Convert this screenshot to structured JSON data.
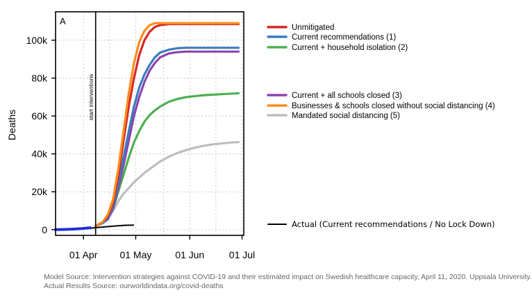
{
  "chart_data": {
    "type": "line",
    "panel_label": "A",
    "ylabel": "Deaths",
    "xlabel": "",
    "ylim": [
      -3000,
      115000
    ],
    "xlim_days_from_mar1": [
      15,
      123
    ],
    "x_ticks": [
      {
        "label": "01 Apr",
        "day": 31
      },
      {
        "label": "01 May",
        "day": 61
      },
      {
        "label": "01 Jun",
        "day": 92
      },
      {
        "label": "01 Jul",
        "day": 122
      }
    ],
    "y_ticks": [
      {
        "label": "0",
        "value": 0
      },
      {
        "label": "20k",
        "value": 20000
      },
      {
        "label": "40k",
        "value": 40000
      },
      {
        "label": "60k",
        "value": 60000
      },
      {
        "label": "80k",
        "value": 80000
      },
      {
        "label": "100k",
        "value": 100000
      }
    ],
    "grid": "dotted",
    "intervention": {
      "day": 38,
      "label": "start interventions"
    },
    "series": [
      {
        "name": "Unmitigated",
        "color": "#d62728",
        "x": [
          38,
          42,
          45,
          48,
          51,
          54,
          57,
          60,
          63,
          66,
          69,
          72,
          75,
          80,
          90,
          100,
          110,
          120
        ],
        "y": [
          2000,
          4000,
          7000,
          14000,
          28000,
          47000,
          65000,
          80000,
          92000,
          100000,
          104500,
          107000,
          108000,
          108500,
          108500,
          108500,
          108500,
          108500
        ]
      },
      {
        "name": "Current recommendations (1)",
        "color": "#3b7bbf",
        "x": [
          38,
          42,
          45,
          48,
          51,
          54,
          57,
          60,
          63,
          66,
          69,
          72,
          75,
          80,
          85,
          90,
          100,
          110,
          120
        ],
        "y": [
          2000,
          3500,
          6000,
          12000,
          24000,
          38000,
          52000,
          65000,
          75000,
          82000,
          87000,
          91000,
          93500,
          95000,
          95800,
          96000,
          96000,
          96000,
          96000
        ]
      },
      {
        "name": "Current + household isolation (2)",
        "color": "#4caf50",
        "x": [
          38,
          42,
          45,
          48,
          51,
          54,
          57,
          60,
          63,
          66,
          69,
          72,
          75,
          80,
          85,
          90,
          100,
          110,
          120
        ],
        "y": [
          2000,
          3500,
          6000,
          11000,
          20000,
          29000,
          38000,
          46000,
          52000,
          57000,
          60500,
          63000,
          65000,
          67500,
          69000,
          70000,
          71000,
          71500,
          72000
        ]
      },
      {
        "name": "Current + all schools closed (3)",
        "color": "#8e44ad",
        "x": [
          38,
          42,
          45,
          48,
          51,
          54,
          57,
          60,
          63,
          66,
          69,
          72,
          75,
          80,
          85,
          90,
          100,
          110,
          120
        ],
        "y": [
          2000,
          3500,
          5500,
          11000,
          22000,
          34000,
          47000,
          60000,
          70000,
          78000,
          84000,
          88000,
          91000,
          93000,
          93700,
          94000,
          94000,
          94000,
          94000
        ]
      },
      {
        "name": "Businesses & schools closed without social distancing (4)",
        "color": "#ff8c1a",
        "x": [
          38,
          42,
          45,
          48,
          51,
          54,
          57,
          60,
          63,
          66,
          69,
          72,
          75,
          80,
          90,
          100,
          110,
          120
        ],
        "y": [
          2000,
          4000,
          8000,
          16000,
          32000,
          52000,
          72000,
          88000,
          99000,
          105000,
          108000,
          109000,
          109000,
          109000,
          109000,
          109000,
          109000,
          109000
        ]
      },
      {
        "name": "Mandated social distancing (5)",
        "color": "#bdbdbd",
        "x": [
          38,
          42,
          45,
          48,
          51,
          54,
          57,
          60,
          63,
          66,
          69,
          72,
          75,
          80,
          85,
          90,
          95,
          100,
          105,
          110,
          115,
          120
        ],
        "y": [
          2000,
          3500,
          6000,
          10000,
          15000,
          19000,
          22000,
          25000,
          27500,
          30000,
          32000,
          34000,
          36000,
          38500,
          40500,
          42000,
          43300,
          44300,
          45000,
          45500,
          46000,
          46200
        ]
      },
      {
        "name": "Actual (Current recommendations / No Lock Down)",
        "color": "#000000",
        "x": [
          15,
          20,
          25,
          30,
          35,
          40,
          45,
          50,
          55,
          60
        ],
        "y": [
          0,
          50,
          200,
          400,
          800,
          1200,
          1600,
          2000,
          2300,
          2400
        ]
      }
    ],
    "actual_start": {
      "color": "#1f2fd6",
      "x": [
        15,
        20,
        25,
        30,
        35
      ],
      "y": [
        0,
        100,
        300,
        600,
        1000
      ]
    }
  },
  "legend_top": [
    "Unmitigated",
    "Current recommendations (1)",
    "Current + household isolation (2)"
  ],
  "legend_bottom": [
    "Current + all schools closed (3)",
    "Businesses & schools closed without social distancing (4)",
    "Mandated social distancing (5)"
  ],
  "legend_actual": "Actual (Current recommendations / No Lock Down)",
  "source": {
    "line1": "Model Source: Intervention strategies against COVID-19 and their estimated impact on Swedish healthcare capacity, April 11, 2020. Uppsala University.",
    "line2": "Actual Results Source: ourworldindata.org/covid-deaths"
  }
}
